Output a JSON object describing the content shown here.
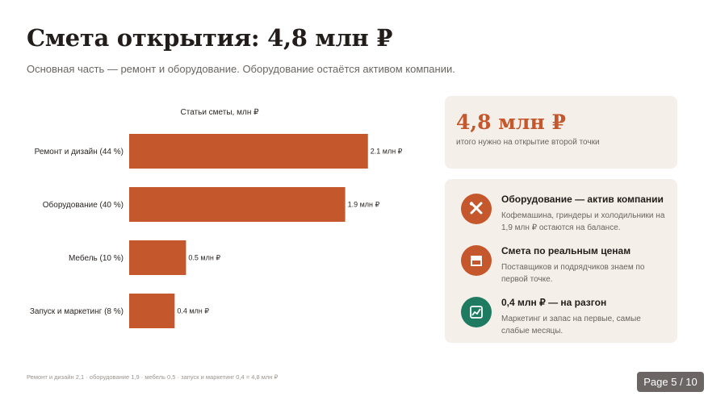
{
  "header": {
    "title": "Смета открытия: 4,8 млн ₽",
    "subtitle": "Основная часть — ремонт и оборудование. Оборудование остаётся активом компании."
  },
  "chart_data": {
    "type": "bar",
    "orientation": "horizontal",
    "title": "Статьи сметы, млн ₽",
    "categories": [
      "Ремонт и дизайн (44 %)",
      "Оборудование (40 %)",
      "Мебель (10 %)",
      "Запуск и маркетинг (8 %)"
    ],
    "values": [
      2.1,
      1.9,
      0.5,
      0.4
    ],
    "value_labels": [
      "2.1 млн ₽",
      "1.9 млн ₽",
      "0.5 млн ₽",
      "0.4 млн ₽"
    ],
    "xlim": [
      0,
      2.4
    ],
    "bar_color": "#c4572c",
    "grid": false,
    "legend": "none"
  },
  "summary_card": {
    "value": "4,8 млн ₽",
    "caption": "итого нужно на открытие второй точки"
  },
  "info_items": [
    {
      "icon": "tools-icon",
      "icon_color": "#c4572c",
      "title": "Оборудование — актив компании",
      "description": "Кофемашина, грindеры и холодильники на 1,9 млн ₽ остаются на балансе."
    },
    {
      "icon": "store-icon",
      "icon_color": "#c4572c",
      "title": "Смета по реальным ценам",
      "description": "Поставщиков и подрядчиков знаем по первой точке."
    },
    {
      "icon": "chart-icon",
      "icon_color": "#1f7a62",
      "title": "0,4 млн ₽ — на разгон",
      "description": "Маркетинг и запас на первые, самые слабые месяцы."
    }
  ],
  "footnote": "Ремонт и дизайн 2,1 · оборудование 1,9 · мебель 0,5 · запуск и маркетинг 0,4 = 4,8 млн ₽",
  "page_indicator": "Page 5 / 10",
  "colors": {
    "accent": "#c4572c",
    "green": "#1f7a62",
    "card_bg": "#f5efe9"
  }
}
